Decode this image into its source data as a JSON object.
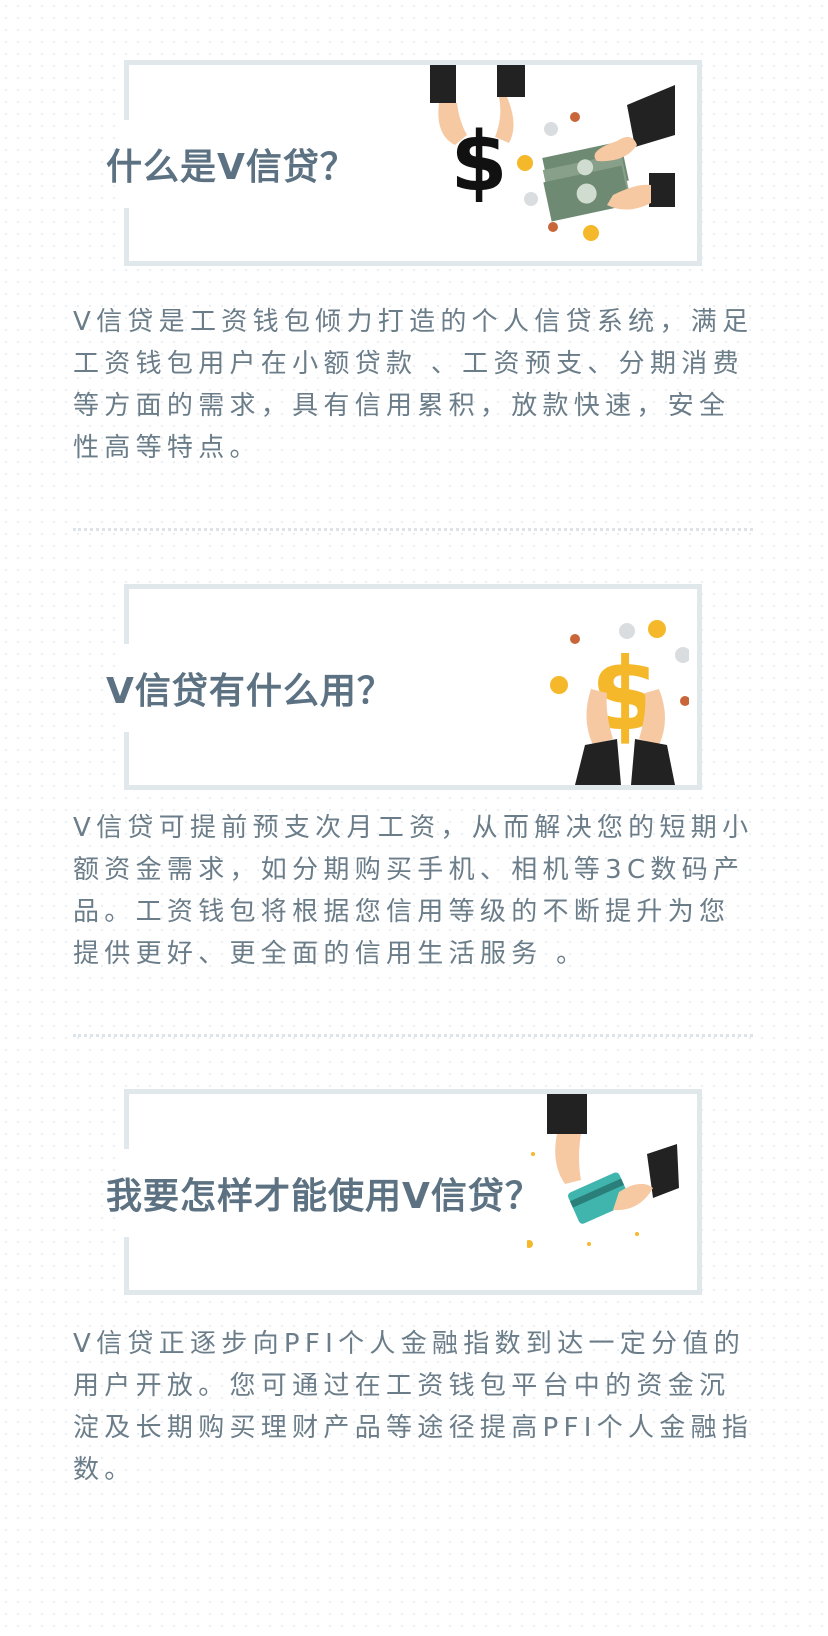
{
  "sections": [
    {
      "title": "什么是V信贷？",
      "body": "V信贷是工资钱包倾力打造的个人信贷系统，满足工资钱包用户在小额贷款 、工资预支、分期消费等方面的需求，具有信用累积，放款快速，安全性高等特点。",
      "illustration": "hands-giving-money-icon"
    },
    {
      "title": "V信贷有什么用？",
      "body": "V信贷可提前预支次月工资，从而解决您的短期小额资金需求，如分期购买手机、相机等3C数码产品。工资钱包将根据您信用等级的不断提升为您提供更好、更全面的信用生活服务 。",
      "illustration": "hands-holding-dollar-icon"
    },
    {
      "title": "我要怎样才能使用V信贷？",
      "body": "V信贷正逐步向PFI个人金融指数到达一定分值的用户开放。您可通过在工资钱包平台中的资金沉淀及长期购买理财产品等途径提高PFI个人金融指数。",
      "illustration": "hands-passing-card-icon"
    }
  ],
  "colors": {
    "title": "#5c7282",
    "body": "#6b7d89",
    "frame": "#e1e8ec",
    "gold": "#f5b82a",
    "sleeve": "#222222",
    "skin": "#f7c9a2",
    "note": "#6f8a72",
    "card": "#3fb5ad"
  }
}
